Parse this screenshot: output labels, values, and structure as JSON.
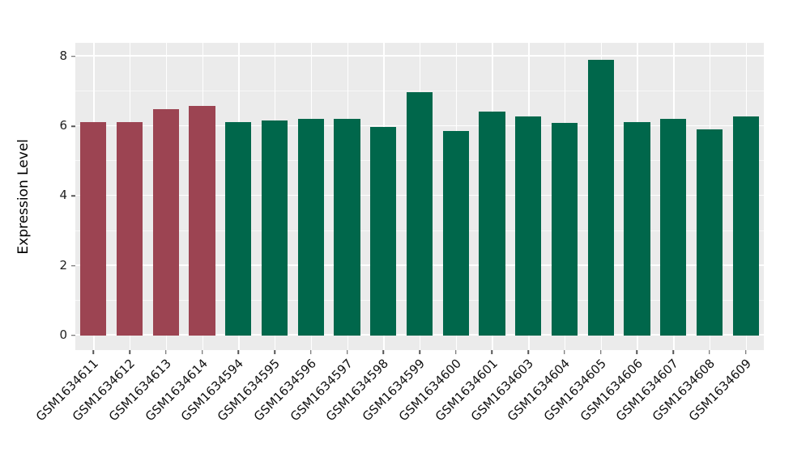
{
  "chart_data": {
    "type": "bar",
    "title": "",
    "xlabel": "",
    "ylabel": "Expression Level",
    "categories": [
      "GSM1634611",
      "GSM1634612",
      "GSM1634613",
      "GSM1634614",
      "GSM1634594",
      "GSM1634595",
      "GSM1634596",
      "GSM1634597",
      "GSM1634598",
      "GSM1634599",
      "GSM1634600",
      "GSM1634601",
      "GSM1634603",
      "GSM1634604",
      "GSM1634605",
      "GSM1634606",
      "GSM1634607",
      "GSM1634608",
      "GSM1634609"
    ],
    "values": [
      6.13,
      6.11,
      6.48,
      6.59,
      6.13,
      6.16,
      6.22,
      6.21,
      5.99,
      6.98,
      5.87,
      6.42,
      6.28,
      6.1,
      7.91,
      6.13,
      6.21,
      5.9,
      6.29
    ],
    "bar_colors": [
      "#9C4452",
      "#9C4452",
      "#9C4452",
      "#9C4452",
      "#00674B",
      "#00674B",
      "#00674B",
      "#00674B",
      "#00674B",
      "#00674B",
      "#00674B",
      "#00674B",
      "#00674B",
      "#00674B",
      "#00674B",
      "#00674B",
      "#00674B",
      "#00674B",
      "#00674B"
    ],
    "group_colors": {
      "highlight": "#9C4452",
      "default": "#00674B"
    },
    "yticks": [
      0,
      2,
      4,
      6,
      8
    ],
    "minor_yticks": [
      1,
      3,
      5,
      7
    ],
    "ylim": [
      -0.42,
      8.39
    ],
    "bar_width_fraction": 0.72,
    "x_tick_rotation": 45,
    "plot_background": "#EBEBEB",
    "grid": true,
    "grid_color": "#FFFFFF",
    "legend_position": "none"
  }
}
